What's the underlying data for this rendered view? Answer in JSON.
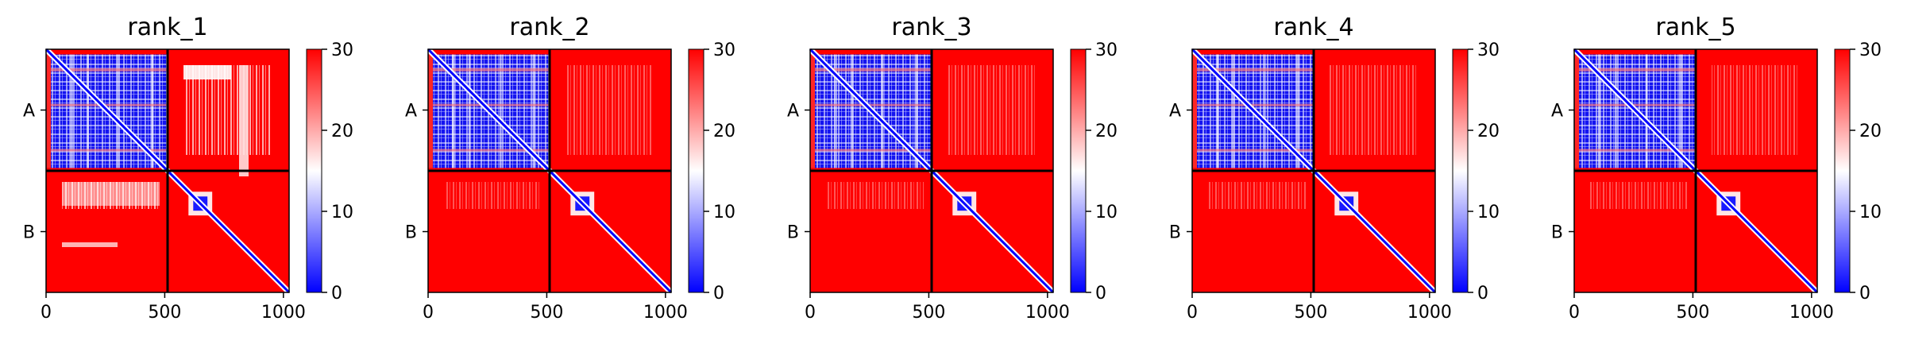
{
  "chart_data": [
    {
      "type": "heatmap",
      "title": "rank_1",
      "x_ticks": [
        0,
        500,
        1000
      ],
      "y_tick_labels": [
        "A",
        "B"
      ],
      "colorbar_ticks": [
        0,
        10,
        20,
        30
      ],
      "colorbar_range": [
        0,
        30
      ],
      "colormap": [
        "#0000ff",
        "#ffffff",
        "#ff0000"
      ],
      "xlim": [
        0,
        1024
      ],
      "chain_boundary": 512
    },
    {
      "type": "heatmap",
      "title": "rank_2",
      "x_ticks": [
        0,
        500,
        1000
      ],
      "y_tick_labels": [
        "A",
        "B"
      ],
      "colorbar_ticks": [
        0,
        10,
        20,
        30
      ],
      "colorbar_range": [
        0,
        30
      ],
      "colormap": [
        "#0000ff",
        "#ffffff",
        "#ff0000"
      ],
      "xlim": [
        0,
        1024
      ],
      "chain_boundary": 512
    },
    {
      "type": "heatmap",
      "title": "rank_3",
      "x_ticks": [
        0,
        500,
        1000
      ],
      "y_tick_labels": [
        "A",
        "B"
      ],
      "colorbar_ticks": [
        0,
        10,
        20,
        30
      ],
      "colorbar_range": [
        0,
        30
      ],
      "colormap": [
        "#0000ff",
        "#ffffff",
        "#ff0000"
      ],
      "xlim": [
        0,
        1024
      ],
      "chain_boundary": 512
    },
    {
      "type": "heatmap",
      "title": "rank_4",
      "x_ticks": [
        0,
        500,
        1000
      ],
      "y_tick_labels": [
        "A",
        "B"
      ],
      "colorbar_ticks": [
        0,
        10,
        20,
        30
      ],
      "colorbar_range": [
        0,
        30
      ],
      "colormap": [
        "#0000ff",
        "#ffffff",
        "#ff0000"
      ],
      "xlim": [
        0,
        1024
      ],
      "chain_boundary": 512
    },
    {
      "type": "heatmap",
      "title": "rank_5",
      "x_ticks": [
        0,
        500,
        1000
      ],
      "y_tick_labels": [
        "A",
        "B"
      ],
      "colorbar_ticks": [
        0,
        10,
        20,
        30
      ],
      "colorbar_range": [
        0,
        30
      ],
      "colormap": [
        "#0000ff",
        "#ffffff",
        "#ff0000"
      ],
      "xlim": [
        0,
        1024
      ],
      "chain_boundary": 512
    }
  ]
}
